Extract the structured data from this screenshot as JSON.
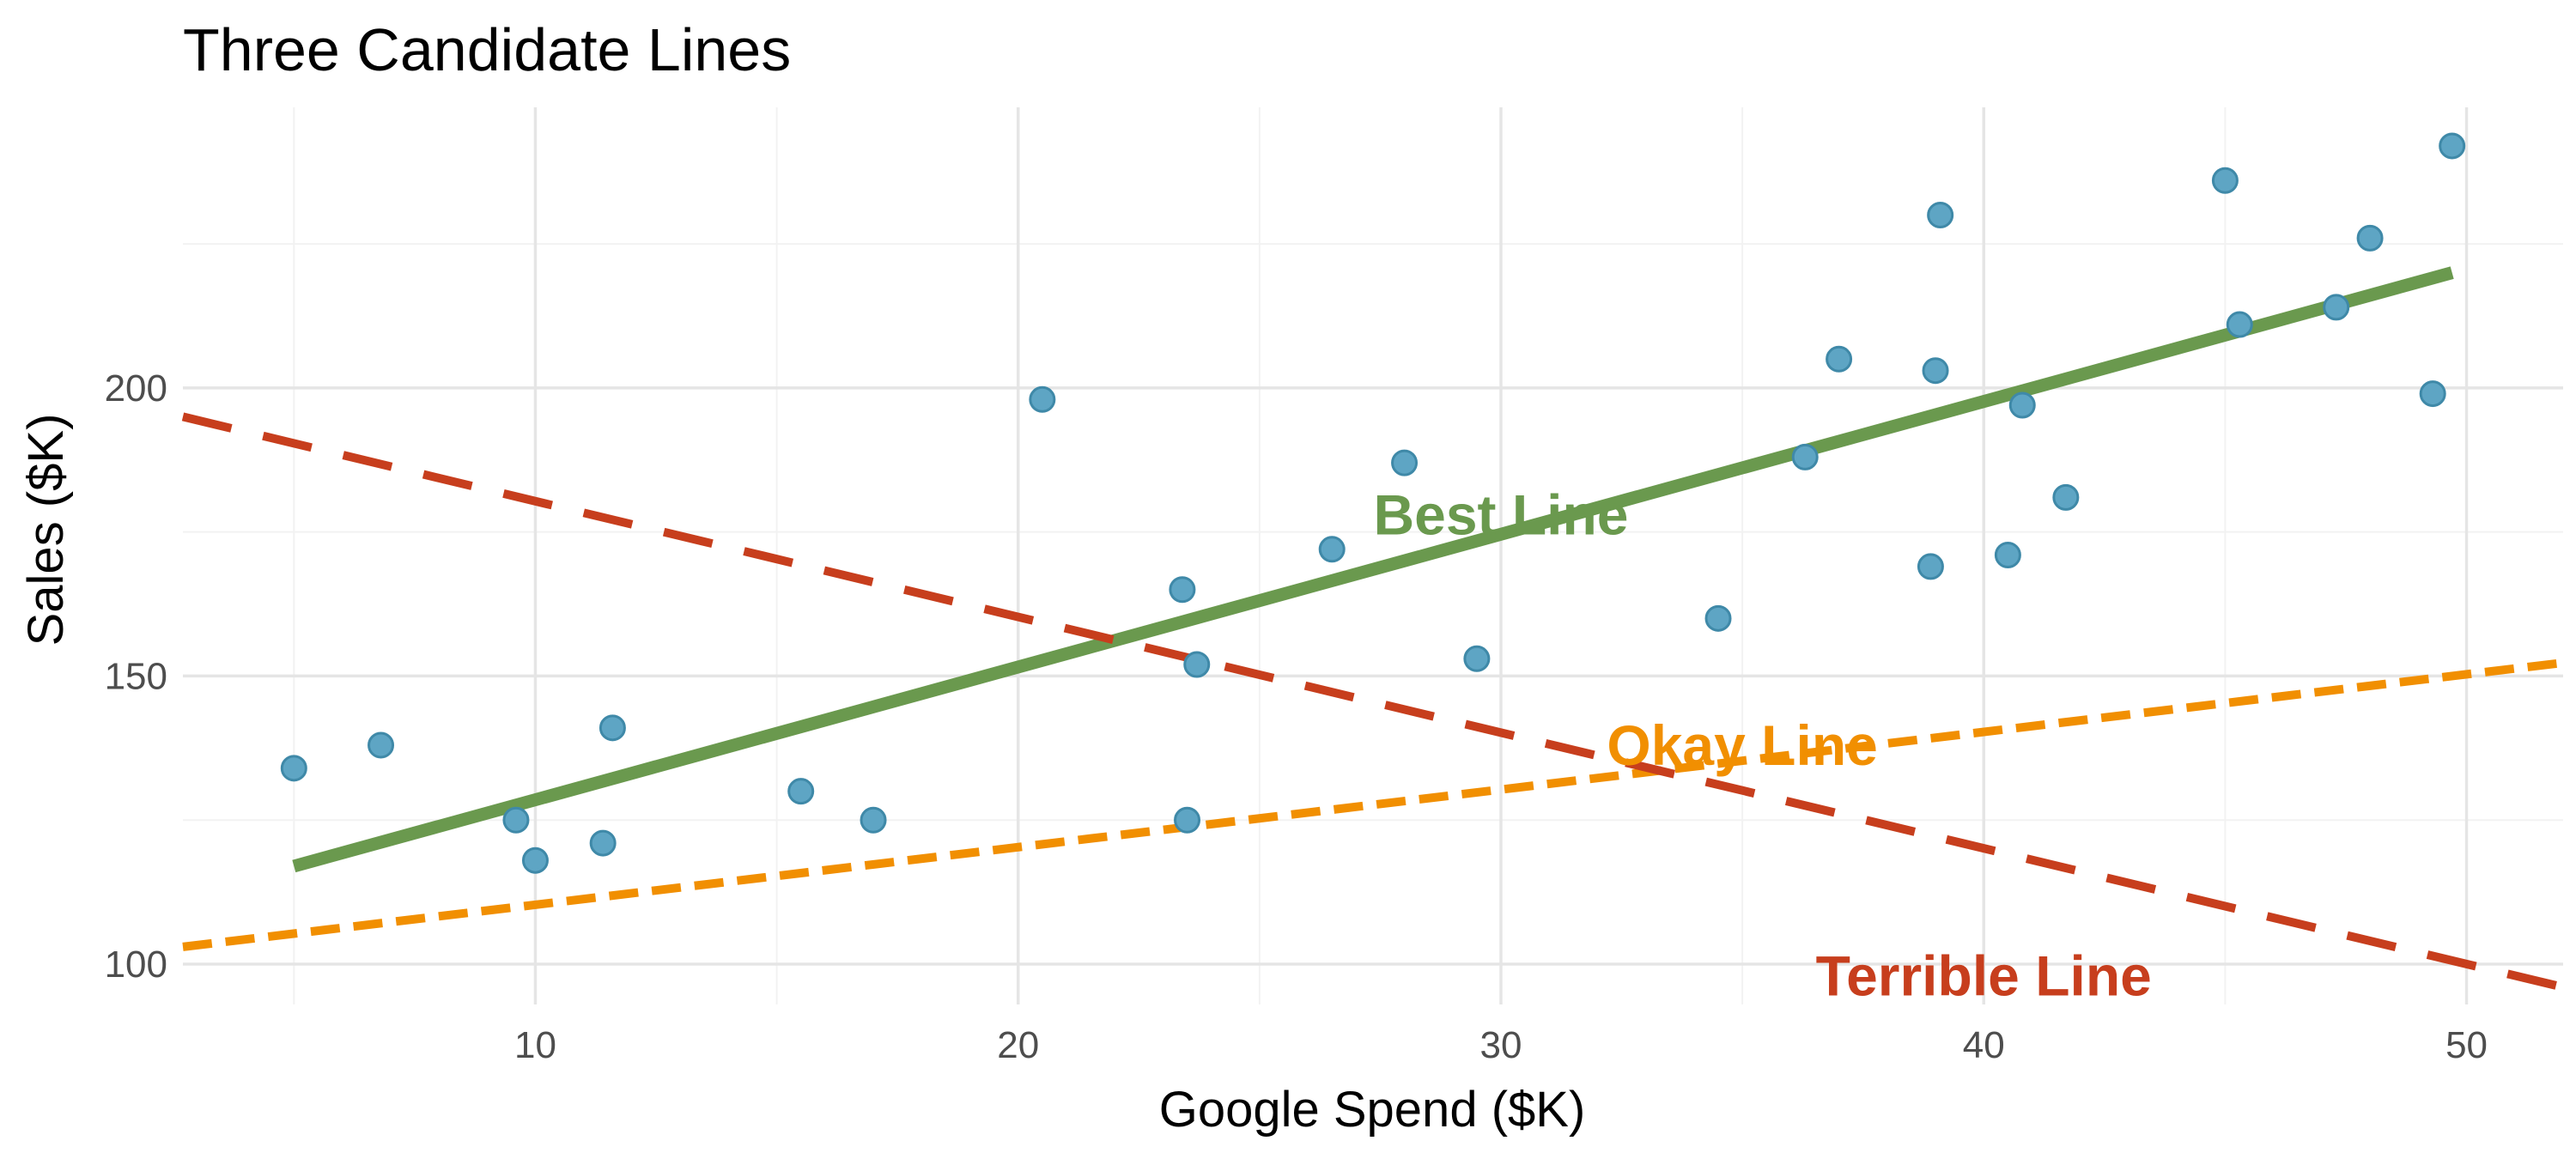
{
  "chart_data": {
    "type": "scatter",
    "title": "Three Candidate Lines",
    "xlabel": "Google Spend ($K)",
    "ylabel": "Sales ($K)",
    "xlim": [
      2.7,
      52
    ],
    "ylim": [
      93,
      248.7
    ],
    "xticks": [
      10,
      20,
      30,
      40,
      50
    ],
    "yticks": [
      100,
      150,
      200
    ],
    "grid": true,
    "legend": "none",
    "point_color": "#5ea5c4",
    "points": {
      "x": [
        5.0,
        6.8,
        9.6,
        10.0,
        11.4,
        11.6,
        15.5,
        17.0,
        20.5,
        23.4,
        23.5,
        23.7,
        26.5,
        28.0,
        29.5,
        34.5,
        36.3,
        37.0,
        38.9,
        39.0,
        39.1,
        40.5,
        40.8,
        41.7,
        45.0,
        45.3,
        47.3,
        48.0,
        49.3,
        49.7
      ],
      "y": [
        134,
        138,
        125,
        118,
        121,
        141,
        130,
        125,
        198,
        165,
        125,
        152,
        172,
        187,
        153,
        160,
        188,
        205,
        169,
        203,
        230,
        171,
        197,
        181,
        236,
        211,
        214,
        226,
        199,
        242
      ]
    },
    "lines": [
      {
        "name": "Best Line",
        "color": "#6a994e",
        "dash": "solid",
        "x": [
          5,
          49.7
        ],
        "y": [
          117,
          220
        ],
        "label_x": 30,
        "label_y": 178
      },
      {
        "name": "Okay Line",
        "color": "#f18f01",
        "dash": "dashed",
        "x": [
          2.7,
          52
        ],
        "y": [
          103,
          152.3
        ],
        "label_x": 35,
        "label_y": 138
      },
      {
        "name": "Terrible Line",
        "color": "#c73e1d",
        "dash": "longdash",
        "x": [
          2.7,
          52
        ],
        "y": [
          195,
          96
        ],
        "label_x": 40,
        "label_y": 98
      }
    ]
  }
}
